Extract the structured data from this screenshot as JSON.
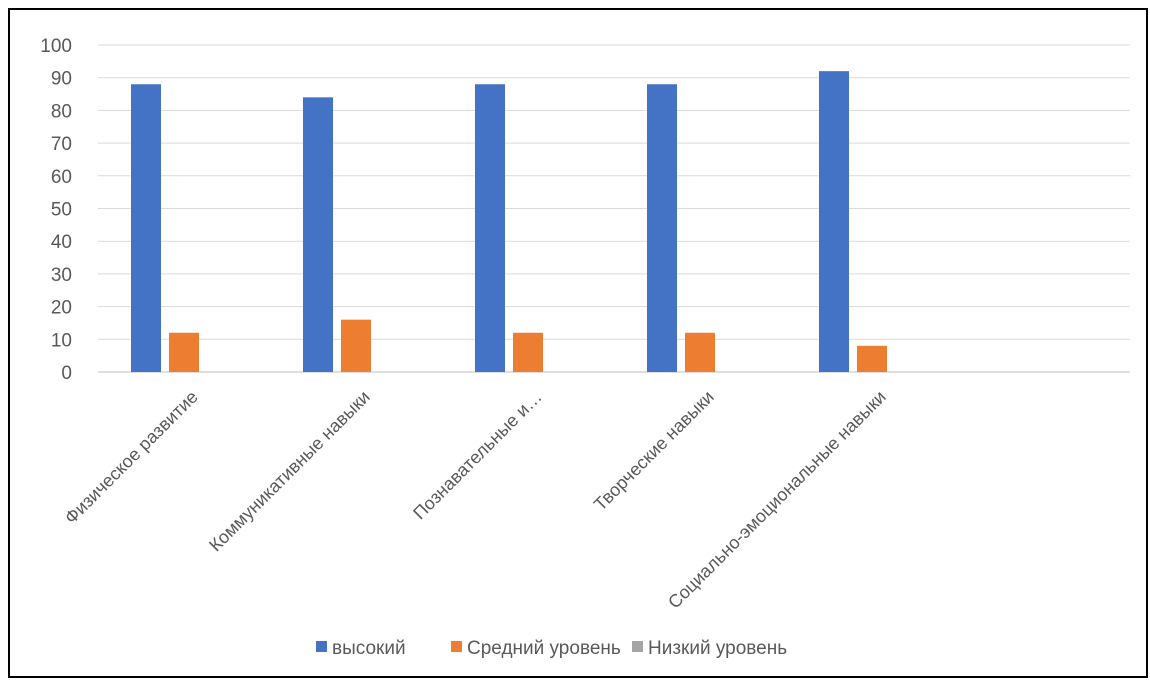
{
  "chart_data": {
    "type": "bar",
    "categories": [
      "Физическое развитие",
      "Коммуникативные навыки",
      "Познавательные и…",
      "Творческие навыки",
      "Социально-эмоциональные навыки",
      ""
    ],
    "series": [
      {
        "name": "высокий",
        "values": [
          88,
          84,
          88,
          88,
          92,
          null
        ],
        "color": "#4472C4"
      },
      {
        "name": "Средний уровень",
        "values": [
          12,
          16,
          12,
          12,
          8,
          null
        ],
        "color": "#ED7D31"
      },
      {
        "name": "Низкий уровень",
        "values": [
          null,
          null,
          null,
          null,
          null,
          null
        ],
        "color": "#A5A5A5"
      }
    ],
    "ylim": [
      0,
      100
    ],
    "yticks": [
      "0",
      "10",
      "20",
      "30",
      "40",
      "50",
      "60",
      "70",
      "80",
      "90",
      "100"
    ],
    "grid": true,
    "legend_position": "bottom",
    "title": "",
    "xlabel": "",
    "ylabel": ""
  }
}
